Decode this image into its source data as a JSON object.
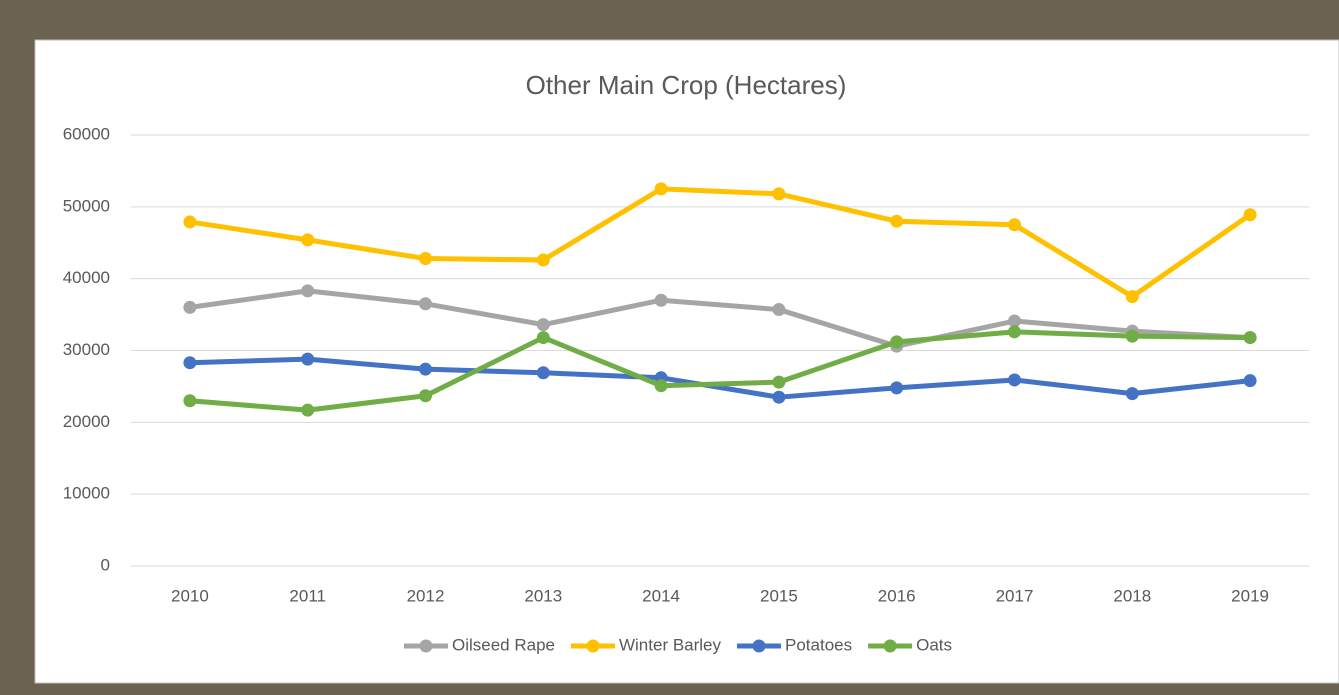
{
  "chart_data": {
    "type": "line",
    "title": "Other Main Crop (Hectares)",
    "categories": [
      "2010",
      "2011",
      "2012",
      "2013",
      "2014",
      "2015",
      "2016",
      "2017",
      "2018",
      "2019"
    ],
    "series": [
      {
        "name": "Oilseed Rape",
        "color": "#a5a5a5",
        "values": [
          36000,
          38300,
          36500,
          33600,
          37000,
          35700,
          30600,
          34100,
          32700,
          31800
        ]
      },
      {
        "name": "Winter Barley",
        "color": "#ffc000",
        "values": [
          47900,
          45400,
          42800,
          42600,
          52500,
          51800,
          48000,
          47500,
          37500,
          48900
        ]
      },
      {
        "name": "Potatoes",
        "color": "#4472c4",
        "values": [
          28300,
          28800,
          27400,
          26900,
          26200,
          23500,
          24800,
          25900,
          24000,
          25800
        ]
      },
      {
        "name": "Oats",
        "color": "#70ad47",
        "values": [
          23000,
          21700,
          23700,
          31800,
          25100,
          25600,
          31200,
          32600,
          32000,
          31800
        ]
      }
    ],
    "ylim": [
      0,
      60000
    ],
    "yticks": [
      0,
      10000,
      20000,
      30000,
      40000,
      50000,
      60000
    ],
    "grid": true,
    "legend": "bottom"
  }
}
